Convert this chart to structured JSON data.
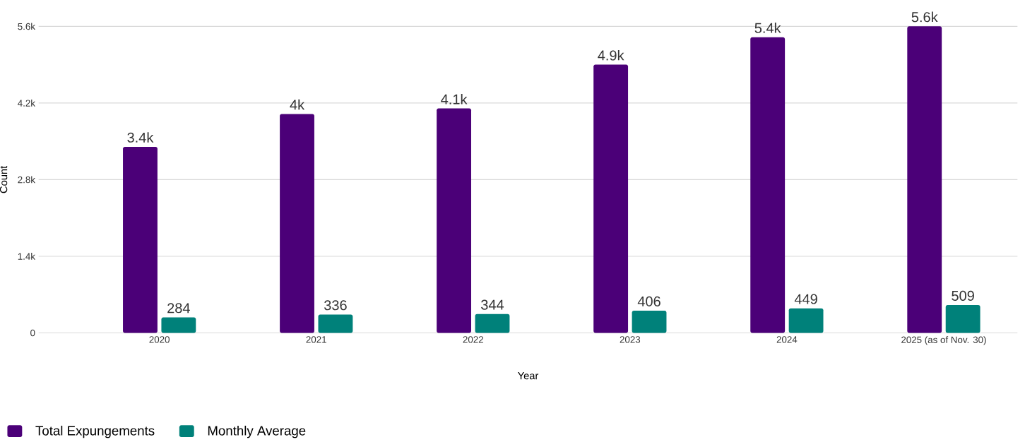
{
  "chart_data": {
    "type": "bar",
    "xlabel": "Year",
    "ylabel": "Count",
    "categories": [
      "2020",
      "2021",
      "2022",
      "2023",
      "2024",
      "2025 (as of Nov. 30)"
    ],
    "series": [
      {
        "name": "Total Expungements",
        "color": "#4b0078",
        "values": [
          3400,
          4000,
          4100,
          4900,
          5400,
          5600
        ],
        "value_labels": [
          "3.4k",
          "4k",
          "4.1k",
          "4.9k",
          "5.4k",
          "5.6k"
        ]
      },
      {
        "name": "Monthly Average",
        "color": "#00817a",
        "values": [
          284,
          336,
          344,
          406,
          449,
          509
        ],
        "value_labels": [
          "284",
          "336",
          "344",
          "406",
          "449",
          "509"
        ]
      }
    ],
    "ylim": [
      0,
      5600
    ],
    "yticks": [
      0,
      {
        "value": 1400,
        "label": "1.4k"
      },
      {
        "value": 2800,
        "label": "2.8k"
      },
      {
        "value": 4200,
        "label": "4.2k"
      },
      {
        "value": 5600,
        "label": "5.6k"
      }
    ],
    "grid": "y",
    "legend": "bottom left"
  }
}
